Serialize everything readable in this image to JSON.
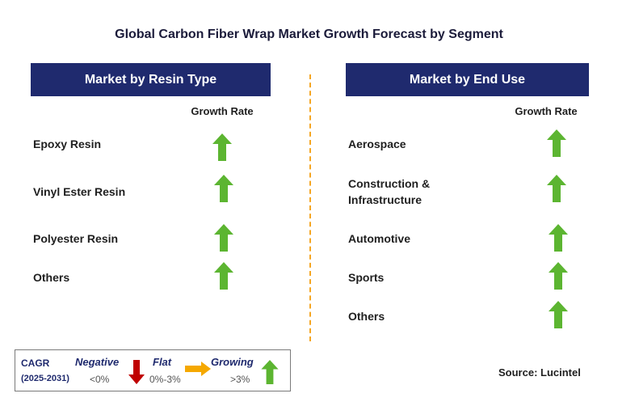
{
  "title": "Global Carbon Fiber Wrap Market Growth Forecast by Segment",
  "left_panel": {
    "header": "Market by Resin Type",
    "column_label": "Growth Rate",
    "rows": [
      {
        "label": "Epoxy Resin",
        "growth": "growing"
      },
      {
        "label": "Vinyl Ester Resin",
        "growth": "growing"
      },
      {
        "label": "Polyester Resin",
        "growth": "growing"
      },
      {
        "label": "Others",
        "growth": "growing"
      }
    ]
  },
  "right_panel": {
    "header": "Market by End Use",
    "column_label": "Growth Rate",
    "rows": [
      {
        "label": "Aerospace",
        "growth": "growing"
      },
      {
        "label_lines": [
          "Construction &",
          "Infrastructure"
        ],
        "growth": "growing"
      },
      {
        "label": "Automotive",
        "growth": "growing"
      },
      {
        "label": "Sports",
        "growth": "growing"
      },
      {
        "label": "Others",
        "growth": "growing"
      }
    ]
  },
  "legend": {
    "cagr": "CAGR",
    "years": "(2025-2031)",
    "negative": {
      "label": "Negative",
      "range": "<0%",
      "icon": "down-arrow-icon",
      "color": "#c00000"
    },
    "flat": {
      "label": "Flat",
      "range": "0%-3%",
      "icon": "right-arrow-icon",
      "color": "#f5a800"
    },
    "growing": {
      "label": "Growing",
      "range": ">3%",
      "icon": "up-arrow-icon",
      "color": "#5cb531"
    }
  },
  "source": "Source: Lucintel",
  "colors": {
    "header_bg": "#1f2a6e",
    "up_arrow": "#5cb531",
    "divider": "#f5a623"
  }
}
